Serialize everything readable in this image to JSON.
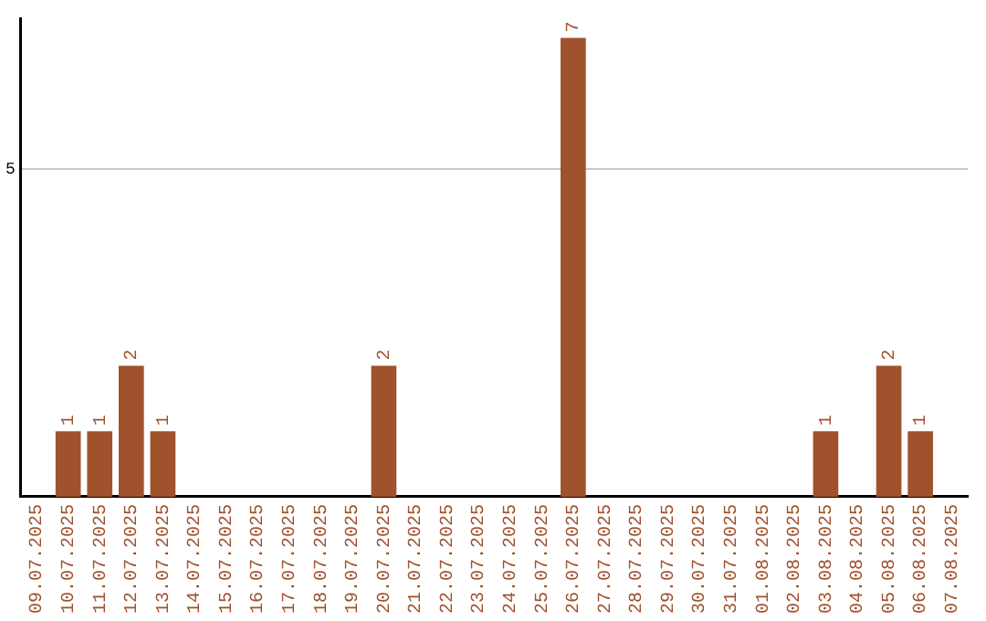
{
  "chart_data": {
    "type": "bar",
    "categories": [
      "09.07.2025",
      "10.07.2025",
      "11.07.2025",
      "12.07.2025",
      "13.07.2025",
      "14.07.2025",
      "15.07.2025",
      "16.07.2025",
      "17.07.2025",
      "18.07.2025",
      "19.07.2025",
      "20.07.2025",
      "21.07.2025",
      "22.07.2025",
      "23.07.2025",
      "24.07.2025",
      "25.07.2025",
      "26.07.2025",
      "27.07.2025",
      "28.07.2025",
      "29.07.2025",
      "30.07.2025",
      "31.07.2025",
      "01.08.2025",
      "02.08.2025",
      "03.08.2025",
      "04.08.2025",
      "05.08.2025",
      "06.08.2025",
      "07.08.2025"
    ],
    "values": [
      0,
      1,
      1,
      2,
      1,
      0,
      0,
      0,
      0,
      0,
      0,
      2,
      0,
      0,
      0,
      0,
      0,
      7,
      0,
      0,
      0,
      0,
      0,
      0,
      0,
      1,
      0,
      2,
      1,
      0
    ],
    "value_labels": [
      null,
      "1",
      "1",
      "2",
      "1",
      null,
      null,
      null,
      null,
      null,
      null,
      "2",
      null,
      null,
      null,
      null,
      null,
      "7",
      null,
      null,
      null,
      null,
      null,
      null,
      null,
      "1",
      null,
      "2",
      "1",
      null
    ],
    "color": "#a0522d",
    "ylim": [
      0,
      7.3
    ],
    "yticks": [
      5
    ],
    "grid": "y",
    "legend": false
  }
}
